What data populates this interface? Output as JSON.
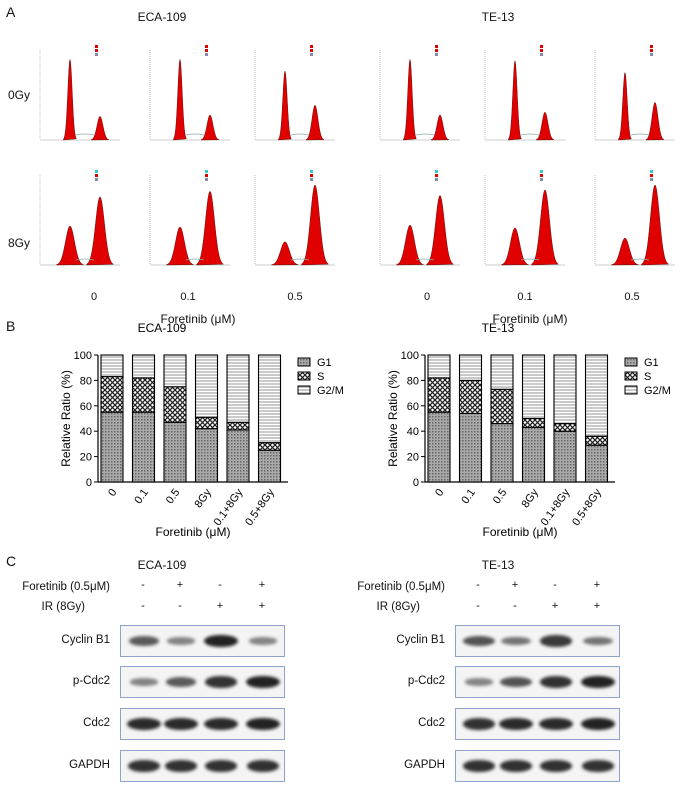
{
  "panels": {
    "a": "A",
    "b": "B",
    "c": "C"
  },
  "cell_lines": [
    "ECA-109",
    "TE-13"
  ],
  "panel_a": {
    "rows": [
      "0Gy",
      "8Gy"
    ],
    "doses": [
      "0",
      "0.1",
      "0.5"
    ],
    "xlabel": "Foretinib (μM)",
    "histogram_color": "#e00000"
  },
  "chart_data": [
    {
      "type": "bar",
      "stacked": true,
      "title": "ECA-109",
      "xlabel": "Foretinib (μM)",
      "ylabel": "Relative  Ratio (%)",
      "ylim": [
        0,
        100
      ],
      "yticks": [
        "0",
        "20",
        "40",
        "60",
        "80",
        "100"
      ],
      "categories": [
        "0",
        "0.1",
        "0.5",
        "8Gy",
        "0.1+8Gy",
        "0.5+8Gy"
      ],
      "legend_position": "right",
      "series": [
        {
          "name": "G1",
          "values": [
            55,
            55,
            47,
            42,
            41,
            25
          ]
        },
        {
          "name": "S",
          "values": [
            28,
            27,
            28,
            9,
            6,
            6
          ]
        },
        {
          "name": "G2/M",
          "values": [
            17,
            18,
            25,
            49,
            53,
            69
          ]
        }
      ]
    },
    {
      "type": "bar",
      "stacked": true,
      "title": "TE-13",
      "xlabel": "Foretinib (μM)",
      "ylabel": "Relative  Ratio (%)",
      "ylim": [
        0,
        100
      ],
      "yticks": [
        "0",
        "20",
        "40",
        "60",
        "80",
        "100"
      ],
      "categories": [
        "0",
        "0.1",
        "0.5",
        "8Gy",
        "0.1+8Gy",
        "0.5+8Gy"
      ],
      "legend_position": "right",
      "series": [
        {
          "name": "G1",
          "values": [
            55,
            54,
            46,
            43,
            40,
            29
          ]
        },
        {
          "name": "S",
          "values": [
            27,
            26,
            27,
            7,
            6,
            7
          ]
        },
        {
          "name": "G2/M",
          "values": [
            18,
            20,
            27,
            50,
            54,
            64
          ]
        }
      ]
    }
  ],
  "panel_c": {
    "treat_labels": [
      "Foretinib (0.5μM)",
      "IR (8Gy)"
    ],
    "foretinib": [
      "-",
      "+",
      "-",
      "+"
    ],
    "ir": [
      "-",
      "-",
      "+",
      "+"
    ],
    "proteins": [
      "Cyclin B1",
      "p-Cdc2",
      "Cdc2",
      "GAPDH"
    ],
    "band_intensity": {
      "ECA-109": [
        [
          0.6,
          0.35,
          0.95,
          0.35
        ],
        [
          0.35,
          0.6,
          0.85,
          0.95
        ],
        [
          0.9,
          0.9,
          0.9,
          0.95
        ],
        [
          0.85,
          0.85,
          0.85,
          0.85
        ]
      ],
      "TE-13": [
        [
          0.65,
          0.45,
          0.8,
          0.45
        ],
        [
          0.35,
          0.65,
          0.85,
          0.95
        ],
        [
          0.85,
          0.9,
          0.9,
          0.95
        ],
        [
          0.85,
          0.85,
          0.85,
          0.85
        ]
      ]
    }
  }
}
